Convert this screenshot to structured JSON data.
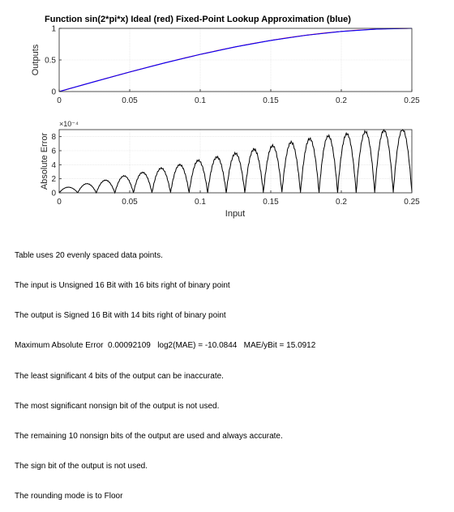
{
  "chart_data": [
    {
      "type": "line",
      "title": "Function sin(2*pi*x)      Ideal (red)    Fixed-Point Lookup Approximation (blue)",
      "xlabel": "",
      "ylabel": "Outputs",
      "xlim": [
        0,
        0.25
      ],
      "ylim": [
        0,
        1
      ],
      "x_ticks": [
        "0",
        "0.05",
        "0.1",
        "0.15",
        "0.2",
        "0.25"
      ],
      "y_ticks": [
        "0",
        "0.5",
        "1"
      ],
      "grid": true,
      "colors": {
        "ideal": "#ff0000",
        "approx": "#0000ff"
      },
      "series": [
        {
          "x": [
            0,
            0.025,
            0.05,
            0.075,
            0.1,
            0.125,
            0.15,
            0.175,
            0.2,
            0.225,
            0.25
          ],
          "values": [
            0,
            0.156,
            0.309,
            0.454,
            0.588,
            0.707,
            0.809,
            0.891,
            0.951,
            0.988,
            1.0
          ]
        }
      ]
    },
    {
      "type": "line",
      "title": "",
      "xlabel": "Input",
      "ylabel": "Absolute Error",
      "y_exponent": "×10⁻⁴",
      "xlim": [
        0,
        0.25
      ],
      "ylim": [
        0,
        9
      ],
      "x_ticks": [
        "0",
        "0.05",
        "0.1",
        "0.15",
        "0.2",
        "0.25"
      ],
      "y_ticks": [
        "0",
        "2",
        "4",
        "6",
        "8"
      ],
      "grid": true,
      "segments": 19,
      "peak_errors_e4": [
        0.8,
        1.3,
        1.8,
        2.4,
        2.9,
        3.5,
        4.0,
        4.6,
        5.1,
        5.6,
        6.2,
        6.7,
        7.2,
        7.7,
        8.1,
        8.4,
        8.7,
        8.9,
        9.0
      ]
    }
  ],
  "notes": [
    "Table uses 20 evenly spaced data points.",
    "The input is Unsigned 16 Bit with 16 bits right of binary point",
    "The output is Signed 16 Bit with 14 bits right of binary point",
    "Maximum Absolute Error  0.00092109   log2(MAE) = -10.0844   MAE/yBit = 15.0912",
    "The least significant 4 bits of the output can be inaccurate.",
    "The most significant nonsign bit of the output is not used.",
    "The remaining 10 nonsign bits of the output are used and always accurate.",
    "The sign bit of the output is not used.",
    "The rounding mode is to Floor"
  ]
}
